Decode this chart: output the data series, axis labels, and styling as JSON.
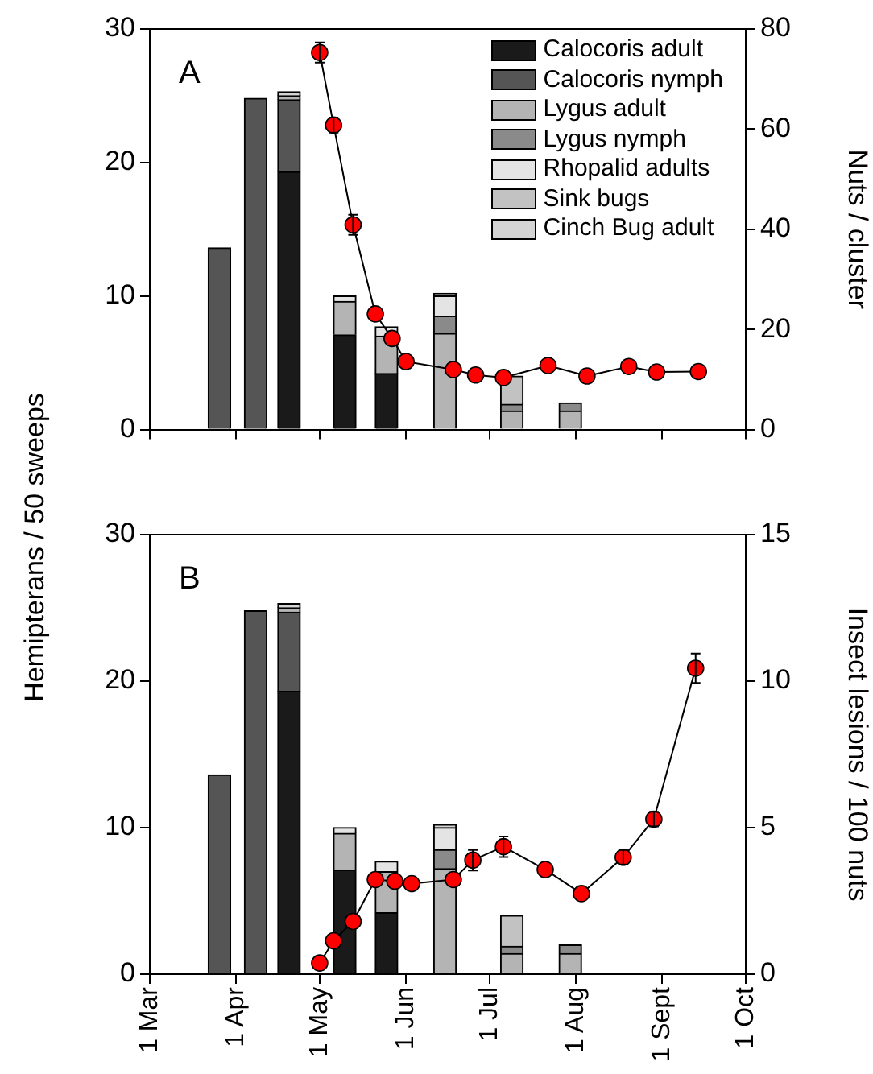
{
  "chart_data": [
    {
      "type": "bar",
      "stacked": true,
      "annotations": [
        "A"
      ],
      "legend": "top right",
      "marker": "circle",
      "y2label": "Nuts / cluster",
      "x": [
        "--03-26",
        "--04-08",
        "--04-20",
        "--05-10",
        "--05-25",
        "--06-15",
        "--07-09",
        "--07-30"
      ],
      "xlim": [
        "--03-01",
        "--10-01"
      ],
      "xticks": [
        "--03-01",
        "--04-01",
        "--05-01",
        "--06-01",
        "--07-01",
        "--08-01",
        "--09-01",
        "--10-01"
      ],
      "tick_labels": "y",
      "ylim": [
        0,
        30
      ],
      "yticks": [
        0,
        10,
        20,
        30
      ],
      "y2lim": [
        0,
        80
      ],
      "y2ticks": [
        0,
        20,
        40,
        60,
        80
      ],
      "series": [
        {
          "name": "Calocoris adult",
          "color": "#1a1a1a",
          "values": [
            null,
            null,
            19.3,
            7.1,
            4.2,
            null,
            null,
            null
          ]
        },
        {
          "name": "Calocoris nymph",
          "color": "#555555",
          "values": [
            13.6,
            24.8,
            5.4,
            null,
            null,
            null,
            null,
            null
          ]
        },
        {
          "name": "Lygus adult",
          "color": "#b4b4b4",
          "values": [
            null,
            null,
            0.3,
            2.5,
            2.8,
            7.2,
            1.4,
            1.4
          ]
        },
        {
          "name": "Lygus nymph",
          "color": "#8a8a8a",
          "values": [
            null,
            null,
            null,
            null,
            null,
            1.3,
            0.5,
            0.6
          ]
        },
        {
          "name": "Rhopalid adults",
          "color": "#e4e4e4",
          "values": [
            null,
            null,
            null,
            0.4,
            0.7,
            1.5,
            null,
            null
          ]
        },
        {
          "name": "Sink bugs",
          "color": "#c2c2c2",
          "values": [
            null,
            null,
            null,
            null,
            null,
            null,
            2.1,
            null
          ]
        },
        {
          "name": "Cinch Bug adult",
          "color": "#d4d4d4",
          "values": [
            null,
            null,
            0.3,
            null,
            null,
            0.2,
            null,
            null
          ]
        },
        {
          "type": "line",
          "axis": "y2",
          "color": "#ff0000",
          "x": [
            "--05-01",
            "--05-06",
            "--05-13",
            "--05-21",
            "--05-27",
            "--06-01",
            "--06-18",
            "--06-26",
            "--07-06",
            "--07-22",
            "--08-05",
            "--08-20",
            "--08-30",
            "--09-14"
          ],
          "values": [
            75.3,
            60.8,
            40.9,
            23.1,
            18.2,
            13.6,
            12.0,
            10.9,
            10.4,
            12.8,
            10.7,
            12.6,
            11.5,
            11.6
          ],
          "errors": [
            2,
            1.5,
            2,
            null,
            null,
            null,
            null,
            null,
            null,
            null,
            null,
            null,
            null,
            null
          ]
        }
      ]
    },
    {
      "type": "bar",
      "stacked": true,
      "annotations": [
        "B"
      ],
      "marker": "circle",
      "ylabel": "Hemipterans / 50 sweeps",
      "y2label": "Insect lesions / 100 nuts",
      "x": [
        "--03-26",
        "--04-08",
        "--04-20",
        "--05-10",
        "--05-25",
        "--06-15",
        "--07-09",
        "--07-30"
      ],
      "xlim": [
        "--03-01",
        "--10-01"
      ],
      "xticks": [
        {
          "value": "--03-01",
          "label": "1 Mar"
        },
        {
          "value": "--04-01",
          "label": "1 Apr"
        },
        {
          "value": "--05-01",
          "label": "1 May"
        },
        {
          "value": "--06-01",
          "label": "1 Jun"
        },
        {
          "value": "--07-01",
          "label": "1 Jul"
        },
        {
          "value": "--08-01",
          "label": "1 Aug"
        },
        {
          "value": "--09-01",
          "label": "1 Sept"
        },
        {
          "value": "--10-01",
          "label": "1 Oct"
        }
      ],
      "ylim": [
        0,
        30
      ],
      "yticks": [
        0,
        10,
        20,
        30
      ],
      "y2lim": [
        0,
        15
      ],
      "y2ticks": [
        0,
        5,
        10,
        15
      ],
      "series": [
        {
          "color": "#1a1a1a",
          "values": [
            null,
            null,
            19.3,
            7.1,
            4.2,
            null,
            null,
            null
          ]
        },
        {
          "color": "#555555",
          "values": [
            13.6,
            24.8,
            5.4,
            null,
            null,
            null,
            null,
            null
          ]
        },
        {
          "color": "#b4b4b4",
          "values": [
            null,
            null,
            0.3,
            2.5,
            2.8,
            7.2,
            1.4,
            1.4
          ]
        },
        {
          "color": "#8a8a8a",
          "values": [
            null,
            null,
            null,
            null,
            null,
            1.3,
            0.5,
            0.6
          ]
        },
        {
          "color": "#e4e4e4",
          "values": [
            null,
            null,
            null,
            0.4,
            0.7,
            1.5,
            null,
            null
          ]
        },
        {
          "color": "#c2c2c2",
          "values": [
            null,
            null,
            null,
            null,
            null,
            null,
            2.1,
            null
          ]
        },
        {
          "color": "#d4d4d4",
          "values": [
            null,
            null,
            0.3,
            null,
            null,
            0.2,
            null,
            null
          ]
        },
        {
          "type": "line",
          "axis": "y2",
          "color": "#ff0000",
          "x": [
            "--05-01",
            "--05-06",
            "--05-13",
            "--05-21",
            "--05-28",
            "--06-03",
            "--06-18",
            "--06-25",
            "--07-06",
            "--07-21",
            "--08-03",
            "--08-18",
            "--08-29",
            "--09-13"
          ],
          "values": [
            0.38,
            1.14,
            1.8,
            3.23,
            3.17,
            3.09,
            3.23,
            3.89,
            4.35,
            3.57,
            2.75,
            3.99,
            5.29,
            10.44
          ],
          "errors": [
            null,
            null,
            null,
            null,
            null,
            null,
            null,
            0.35,
            0.35,
            null,
            null,
            0.25,
            0.25,
            0.5
          ]
        }
      ]
    }
  ]
}
